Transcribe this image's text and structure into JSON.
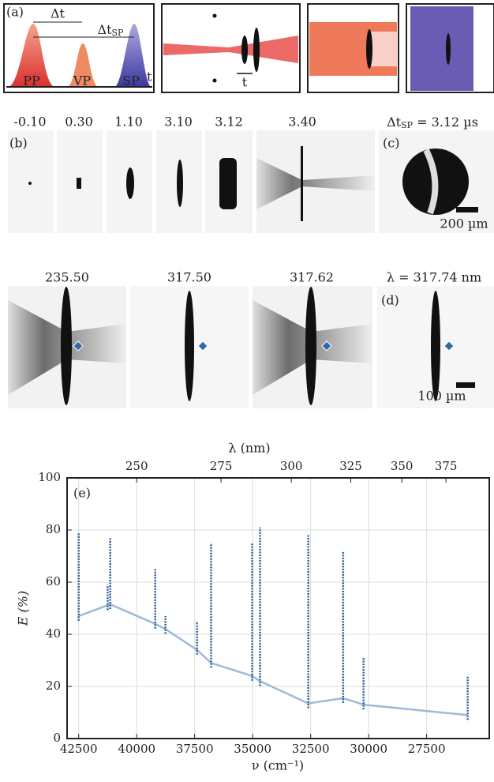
{
  "panel_a": {
    "label": "(a)",
    "delay": "Δt",
    "delay_sp": "Δt",
    "delay_sp_sub": "SP",
    "pulses": [
      "PP",
      "VP",
      "SP"
    ],
    "time_axis": "t",
    "arrow_t": "t"
  },
  "panel_b": {
    "label": "(b)",
    "delays": [
      "-0.10",
      "0.30",
      "1.10",
      "3.10",
      "3.12",
      "3.40"
    ],
    "delay_prefix": "Δt",
    "delay_sub": "SP",
    "delay_value": " = 3.12 µs"
  },
  "panel_c": {
    "label": "(c)",
    "scale": "200 µm"
  },
  "panel_d": {
    "label": "(d)",
    "wavelengths": [
      "235.50",
      "317.50",
      "317.62"
    ],
    "wavelength_last": "λ = 317.74 nm",
    "scale": "100 µm"
  },
  "chart_data": {
    "type": "line",
    "annotation": "(e)",
    "x_label": "ν (cm⁻¹)",
    "x2_label": "λ (nm)",
    "y_label": "E (%)",
    "xlim": [
      43000,
      24800
    ],
    "xticks": [
      42500,
      40000,
      37500,
      35000,
      32500,
      30000,
      27500
    ],
    "x2ticks": [
      250,
      275,
      300,
      325,
      350,
      375
    ],
    "ylim": [
      0,
      100
    ],
    "yticks": [
      0,
      20,
      40,
      60,
      80,
      100
    ],
    "grid": true,
    "series": [
      {
        "color": "#9fb9d6",
        "x": [
          42500,
          41140,
          39200,
          38760,
          37400,
          36790,
          35020,
          34680,
          32600,
          31100,
          30220,
          25730
        ],
        "values": [
          47,
          51.5,
          44,
          42,
          34,
          29,
          24,
          22,
          13.5,
          15.5,
          13,
          9
        ]
      },
      {
        "color": "#2d5f96",
        "x": [
          42500,
          41250,
          41140,
          39200,
          38760,
          37400,
          36790,
          35020,
          34680,
          32600,
          31100,
          30220,
          25730
        ],
        "values": [
          79,
          59,
          77,
          65,
          47,
          45,
          75,
          75,
          81,
          78,
          72,
          31,
          24
        ]
      }
    ]
  }
}
